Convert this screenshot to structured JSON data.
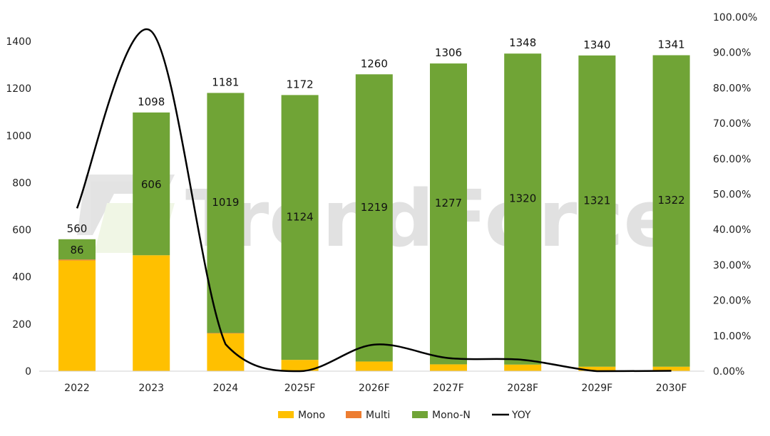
{
  "chart_data": {
    "type": "bar",
    "stacked": true,
    "categories": [
      "2022",
      "2023",
      "2024",
      "2025F",
      "2026F",
      "2027F",
      "2028F",
      "2029F",
      "2030F"
    ],
    "series": [
      {
        "name": "Mono",
        "color": "#FFC000",
        "values": [
          470,
          492,
          160,
          48,
          41,
          29,
          28,
          19,
          19
        ]
      },
      {
        "name": "Multi",
        "color": "#ED7D31",
        "values": [
          4,
          0,
          2,
          0,
          0,
          0,
          0,
          0,
          0
        ]
      },
      {
        "name": "Mono-N",
        "color": "#70A436",
        "values": [
          86,
          606,
          1019,
          1124,
          1219,
          1277,
          1320,
          1321,
          1322
        ],
        "data_labels": [
          "86",
          "606",
          "1019",
          "1124",
          "1219",
          "1277",
          "1320",
          "1321",
          "1322"
        ]
      }
    ],
    "totals": [
      "560",
      "1098",
      "1181",
      "1172",
      "1260",
      "1306",
      "1348",
      "1340",
      "1341"
    ],
    "line_series": {
      "name": "YOY",
      "color": "#000000",
      "axis": "right",
      "values": [
        46,
        96,
        7.6,
        -0.8,
        7.5,
        3.7,
        3.2,
        -0.6,
        0.1
      ]
    },
    "ylim": [
      0,
      1400
    ],
    "yticks": [
      "0",
      "200",
      "400",
      "600",
      "800",
      "1000",
      "1200",
      "1400"
    ],
    "y2lim": [
      0,
      100
    ],
    "y2ticks": [
      "0.00%",
      "10.00%",
      "20.00%",
      "30.00%",
      "40.00%",
      "50.00%",
      "60.00%",
      "70.00%",
      "80.00%",
      "90.00%",
      "100.00%"
    ],
    "grid": false,
    "legend": "bottom",
    "watermark": "TrendForce"
  }
}
